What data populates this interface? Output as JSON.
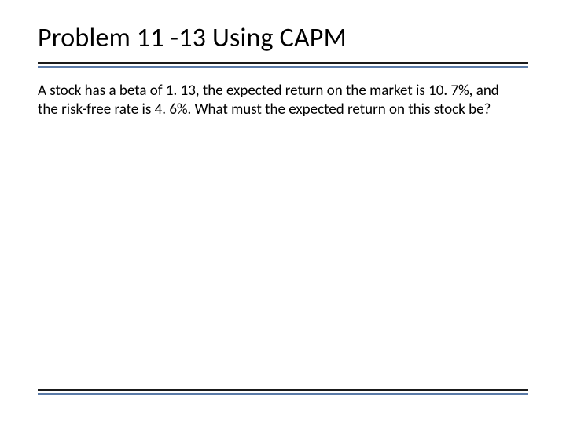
{
  "slide": {
    "title": "Problem 11 -13 Using CAPM",
    "body": "A stock has a beta of 1. 13, the expected return on the market is 10. 7%, and the risk-free rate is 4. 6%. What must the expected return on this stock be?"
  },
  "style": {
    "background_color": "#ffffff",
    "title_fontsize": 34,
    "title_color": "#000000",
    "body_fontsize": 19,
    "body_color": "#000000",
    "rule_dark_color": "#1a1a1a",
    "rule_dark_height": 3,
    "rule_blue_color": "#5b7ba8",
    "rule_blue_height": 2,
    "font_family": "Calibri"
  }
}
